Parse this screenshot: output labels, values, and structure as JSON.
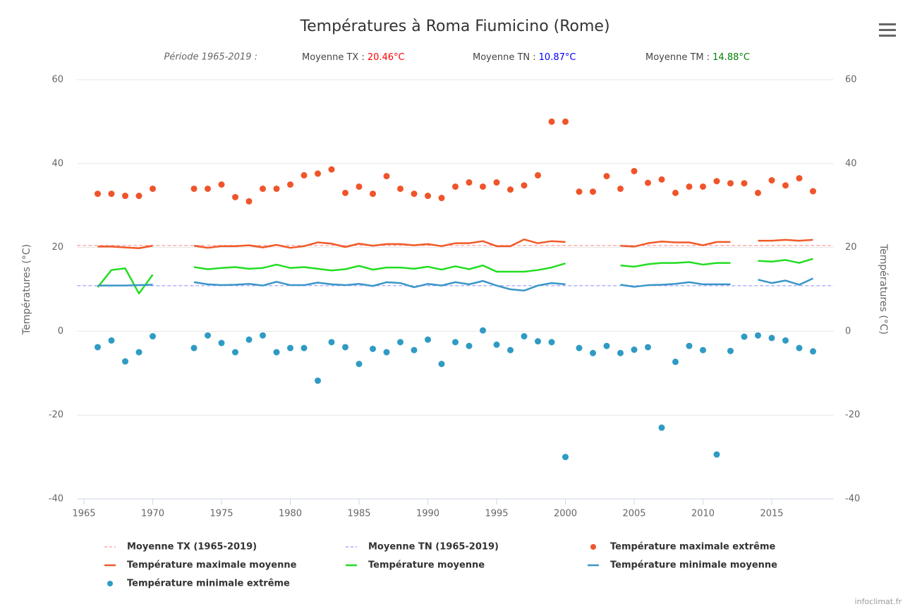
{
  "chart_data": {
    "type": "line",
    "title": "Températures à Roma Fiumicino (Rome)",
    "period": "Période 1965-2019 :",
    "averages": [
      {
        "label": "Moyenne TX :",
        "value": 20.46,
        "value_label": "20.46°C",
        "color": "#ff0000"
      },
      {
        "label": "Moyenne TN :",
        "value": 10.87,
        "value_label": "10.87°C",
        "color": "#0000ff"
      },
      {
        "label": "Moyenne TM :",
        "value": 14.88,
        "value_label": "14.88°C",
        "color": "#008000"
      }
    ],
    "y_label": "Températures (°C)",
    "y2_label": "Températures (°C)",
    "credits": "infoclimat.fr",
    "xlim": [
      1964.5,
      2019.5
    ],
    "xticks": [
      1965,
      1970,
      1975,
      1980,
      1985,
      1990,
      1995,
      2000,
      2005,
      2010,
      2015
    ],
    "ylim": [
      -40,
      60
    ],
    "yticks": [
      -40,
      -20,
      0,
      20,
      40,
      60
    ],
    "y2lim": [
      -40,
      60
    ],
    "y2ticks": [
      -40,
      -20,
      0,
      20,
      40,
      60
    ],
    "grid": true,
    "x": [
      1966,
      1967,
      1968,
      1969,
      1970,
      1971,
      1972,
      1973,
      1974,
      1975,
      1976,
      1977,
      1978,
      1979,
      1980,
      1981,
      1982,
      1983,
      1984,
      1985,
      1986,
      1987,
      1988,
      1989,
      1990,
      1991,
      1992,
      1993,
      1994,
      1995,
      1996,
      1997,
      1998,
      1999,
      2000,
      2001,
      2002,
      2003,
      2004,
      2005,
      2006,
      2007,
      2008,
      2009,
      2010,
      2011,
      2012,
      2013,
      2014,
      2015,
      2016,
      2017,
      2018
    ],
    "reference_lines": [
      {
        "name": "Moyenne TX (1965-2019)",
        "color": "#ff9999"
      },
      {
        "name": "Moyenne TN (1965-2019)",
        "color": "#9999ff"
      }
    ],
    "series": [
      {
        "name": "Température maximale extrême",
        "type": "scatter",
        "color": "#f0542a",
        "values": [
          32.8,
          32.8,
          32.3,
          32.3,
          34,
          null,
          null,
          34,
          34,
          35,
          32,
          31,
          34,
          34,
          35,
          37.2,
          37.6,
          38.6,
          33,
          34.5,
          32.8,
          37,
          34,
          32.8,
          32.3,
          31.8,
          34.5,
          35.5,
          34.5,
          35.5,
          33.8,
          34.8,
          37.2,
          50,
          50,
          33.3,
          33.3,
          37,
          34,
          38.2,
          35.4,
          36.2,
          33,
          34.5,
          34.5,
          35.8,
          35.3,
          35.3,
          33,
          36,
          34.8,
          36.5,
          33.4
        ]
      },
      {
        "name": "Température maximale moyenne",
        "type": "line",
        "color": "#f05a28",
        "values": [
          20.2,
          20.2,
          20,
          19.8,
          20.4,
          null,
          null,
          20.4,
          19.9,
          20.3,
          20.3,
          20.5,
          20,
          20.6,
          19.9,
          20.3,
          21.2,
          20.9,
          20.1,
          20.9,
          20.4,
          20.8,
          20.8,
          20.5,
          20.8,
          20.3,
          21,
          21,
          21.5,
          20.3,
          20.3,
          21.9,
          21,
          21.5,
          21.3,
          null,
          null,
          null,
          20.4,
          20.2,
          21,
          21.4,
          21.2,
          21.2,
          20.5,
          21.3,
          21.3,
          null,
          21.6,
          21.6,
          21.8,
          21.6,
          21.8
        ]
      },
      {
        "name": "Température moyenne",
        "type": "line",
        "color": "#22dd22",
        "values": [
          10.5,
          14.6,
          15,
          9,
          13.5,
          null,
          null,
          15.3,
          14.8,
          15.1,
          15.3,
          14.9,
          15.1,
          15.9,
          15.1,
          15.3,
          14.9,
          14.5,
          14.8,
          15.6,
          14.7,
          15.2,
          15.2,
          14.9,
          15.4,
          14.7,
          15.5,
          14.8,
          15.7,
          14.2,
          14.2,
          14.2,
          14.6,
          15.2,
          16.2,
          null,
          null,
          null,
          15.7,
          15.4,
          16,
          16.3,
          16.3,
          16.5,
          15.9,
          16.3,
          16.3,
          null,
          16.8,
          16.6,
          17,
          16.3,
          17.3
        ]
      },
      {
        "name": "Température minimale moyenne",
        "type": "line",
        "color": "#3a96c8",
        "values": [
          10.9,
          10.9,
          10.9,
          11,
          11.1,
          null,
          null,
          11.7,
          11.2,
          11,
          11.1,
          11.3,
          10.9,
          11.8,
          11,
          11,
          11.6,
          11.2,
          11,
          11.3,
          10.8,
          11.7,
          11.5,
          10.5,
          11.3,
          10.9,
          11.7,
          11.2,
          12,
          10.9,
          10,
          9.7,
          10.9,
          11.5,
          11.2,
          null,
          null,
          null,
          11.1,
          10.6,
          11,
          11.1,
          11.3,
          11.7,
          11.2,
          11.2,
          11.2,
          null,
          12.3,
          11.5,
          12.1,
          11.1,
          12.6
        ]
      },
      {
        "name": "Température minimale extrême",
        "type": "scatter",
        "color": "#2f9bc4",
        "values": [
          -3.8,
          -2.2,
          -7.2,
          -5,
          -1.2,
          null,
          null,
          -4,
          -1,
          -2.8,
          -5,
          -2,
          -1,
          -5,
          -4,
          -4,
          -11.8,
          -2.6,
          -3.8,
          -7.8,
          -4.2,
          -5,
          -2.6,
          -4.5,
          -2,
          -7.8,
          -2.6,
          -3.5,
          0.2,
          -3.2,
          -4.5,
          -1.2,
          -2.4,
          -2.6,
          -30,
          -4,
          -5.2,
          -3.5,
          -5.2,
          -4.4,
          -3.8,
          -23,
          -7.3,
          -3.5,
          -4.5,
          -29.4,
          -4.7,
          -1.3,
          -1,
          -1.6,
          -2.2,
          -4,
          -4.8
        ]
      }
    ]
  }
}
